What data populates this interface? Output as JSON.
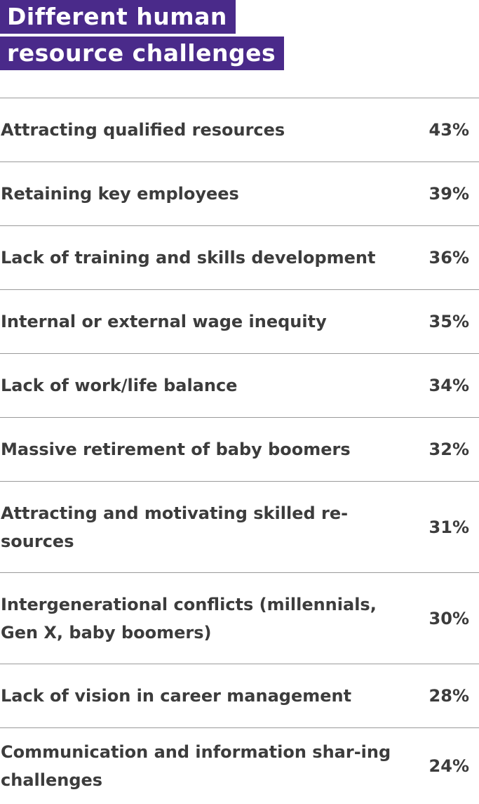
{
  "title": {
    "line1": "Different human",
    "line2": "resource challenges"
  },
  "colors": {
    "title_background": "#4a2a8a",
    "title_text": "#ffffff",
    "body_text": "#3c3c3c",
    "divider": "#9a9a9a"
  },
  "chart_data": {
    "type": "table",
    "title": "Different human resource challenges",
    "categories": [
      "Attracting qualified resources",
      "Retaining key employees",
      "Lack of training and skills development",
      "Internal or external wage inequity",
      "Lack of work/life balance",
      "Massive retirement of baby boomers",
      "Attracting and motivating skilled resources",
      "Intergenerational conflicts (millennials, Gen X, baby boomers)",
      "Lack of vision in career management",
      "Communication and information sharing challenges"
    ],
    "values": [
      43,
      39,
      36,
      35,
      34,
      32,
      31,
      30,
      28,
      24
    ],
    "unit": "%"
  },
  "rows": [
    {
      "label": "Attracting qualified resources",
      "value": "43%"
    },
    {
      "label": "Retaining key employees",
      "value": "39%"
    },
    {
      "label": "Lack of training and skills development",
      "value": "36%"
    },
    {
      "label": "Internal or external wage inequity",
      "value": "35%"
    },
    {
      "label": "Lack of work/life balance",
      "value": "34%"
    },
    {
      "label": "Massive retirement of baby boomers",
      "value": "32%"
    },
    {
      "label": "Attracting and motivating skilled re-sources",
      "value": "31%"
    },
    {
      "label": "Intergenerational conflicts (millennials, Gen X, baby boomers)",
      "value": "30%"
    },
    {
      "label": "Lack of vision in career management",
      "value": "28%"
    },
    {
      "label": "Communication and information shar-ing challenges",
      "value": "24%"
    }
  ]
}
